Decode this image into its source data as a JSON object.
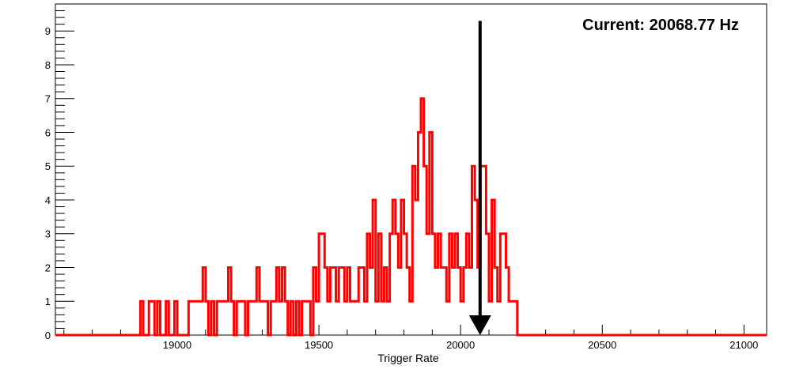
{
  "chart_data": {
    "type": "histogram",
    "title": "",
    "xlabel": "Trigger Rate",
    "ylabel": "",
    "xlim": [
      18570,
      21080
    ],
    "ylim": [
      0,
      9.8
    ],
    "x_ticks": [
      19000,
      19500,
      20000,
      20500,
      21000
    ],
    "y_ticks": [
      0,
      1,
      2,
      3,
      4,
      5,
      6,
      7,
      8,
      9
    ],
    "grid": false,
    "legend": "none",
    "line_color": "#ff0000",
    "bin_width": 10,
    "bins": [
      [
        18870,
        1
      ],
      [
        18900,
        1
      ],
      [
        18910,
        1
      ],
      [
        18930,
        1
      ],
      [
        18960,
        1
      ],
      [
        18990,
        1
      ],
      [
        19040,
        1
      ],
      [
        19050,
        1
      ],
      [
        19060,
        1
      ],
      [
        19070,
        1
      ],
      [
        19080,
        1
      ],
      [
        19090,
        2
      ],
      [
        19100,
        1
      ],
      [
        19120,
        1
      ],
      [
        19140,
        1
      ],
      [
        19150,
        1
      ],
      [
        19160,
        1
      ],
      [
        19170,
        1
      ],
      [
        19180,
        2
      ],
      [
        19190,
        1
      ],
      [
        19210,
        1
      ],
      [
        19220,
        1
      ],
      [
        19230,
        1
      ],
      [
        19250,
        1
      ],
      [
        19260,
        1
      ],
      [
        19270,
        1
      ],
      [
        19280,
        2
      ],
      [
        19290,
        1
      ],
      [
        19300,
        1
      ],
      [
        19310,
        1
      ],
      [
        19330,
        1
      ],
      [
        19340,
        1
      ],
      [
        19350,
        2
      ],
      [
        19360,
        1
      ],
      [
        19370,
        2
      ],
      [
        19380,
        1
      ],
      [
        19400,
        1
      ],
      [
        19420,
        1
      ],
      [
        19440,
        1
      ],
      [
        19450,
        1
      ],
      [
        19460,
        1
      ],
      [
        19480,
        2
      ],
      [
        19490,
        1
      ],
      [
        19500,
        3
      ],
      [
        19510,
        3
      ],
      [
        19520,
        2
      ],
      [
        19530,
        1
      ],
      [
        19540,
        2
      ],
      [
        19550,
        2
      ],
      [
        19560,
        1
      ],
      [
        19570,
        2
      ],
      [
        19580,
        2
      ],
      [
        19590,
        1
      ],
      [
        19600,
        2
      ],
      [
        19610,
        1
      ],
      [
        19620,
        1
      ],
      [
        19630,
        1
      ],
      [
        19640,
        2
      ],
      [
        19650,
        2
      ],
      [
        19660,
        1
      ],
      [
        19670,
        3
      ],
      [
        19680,
        2
      ],
      [
        19690,
        4
      ],
      [
        19700,
        1
      ],
      [
        19710,
        3
      ],
      [
        19720,
        1
      ],
      [
        19730,
        2
      ],
      [
        19740,
        1
      ],
      [
        19750,
        3
      ],
      [
        19760,
        4
      ],
      [
        19770,
        3
      ],
      [
        19780,
        2
      ],
      [
        19790,
        4
      ],
      [
        19800,
        3
      ],
      [
        19810,
        2
      ],
      [
        19820,
        1
      ],
      [
        19830,
        5
      ],
      [
        19840,
        4
      ],
      [
        19850,
        6
      ],
      [
        19860,
        7
      ],
      [
        19870,
        5
      ],
      [
        19880,
        3
      ],
      [
        19890,
        6
      ],
      [
        19900,
        3
      ],
      [
        19910,
        2
      ],
      [
        19920,
        3
      ],
      [
        19930,
        2
      ],
      [
        19940,
        2
      ],
      [
        19950,
        1
      ],
      [
        19960,
        3
      ],
      [
        19970,
        2
      ],
      [
        19980,
        3
      ],
      [
        19990,
        2
      ],
      [
        20000,
        1
      ],
      [
        20010,
        2
      ],
      [
        20020,
        3
      ],
      [
        20030,
        2
      ],
      [
        20040,
        5
      ],
      [
        20050,
        4
      ],
      [
        20060,
        2
      ],
      [
        20070,
        5
      ],
      [
        20080,
        5
      ],
      [
        20090,
        3
      ],
      [
        20100,
        1
      ],
      [
        20110,
        4
      ],
      [
        20120,
        2
      ],
      [
        20130,
        1
      ],
      [
        20140,
        3
      ],
      [
        20150,
        3
      ],
      [
        20160,
        2
      ],
      [
        20170,
        1
      ],
      [
        20180,
        1
      ],
      [
        20190,
        1
      ]
    ],
    "arrow": {
      "x": 20068.77,
      "y_top": 9.3,
      "y_bottom": 0,
      "color": "#000000"
    },
    "annotations": [
      "Current: 20068.77 Hz"
    ]
  }
}
